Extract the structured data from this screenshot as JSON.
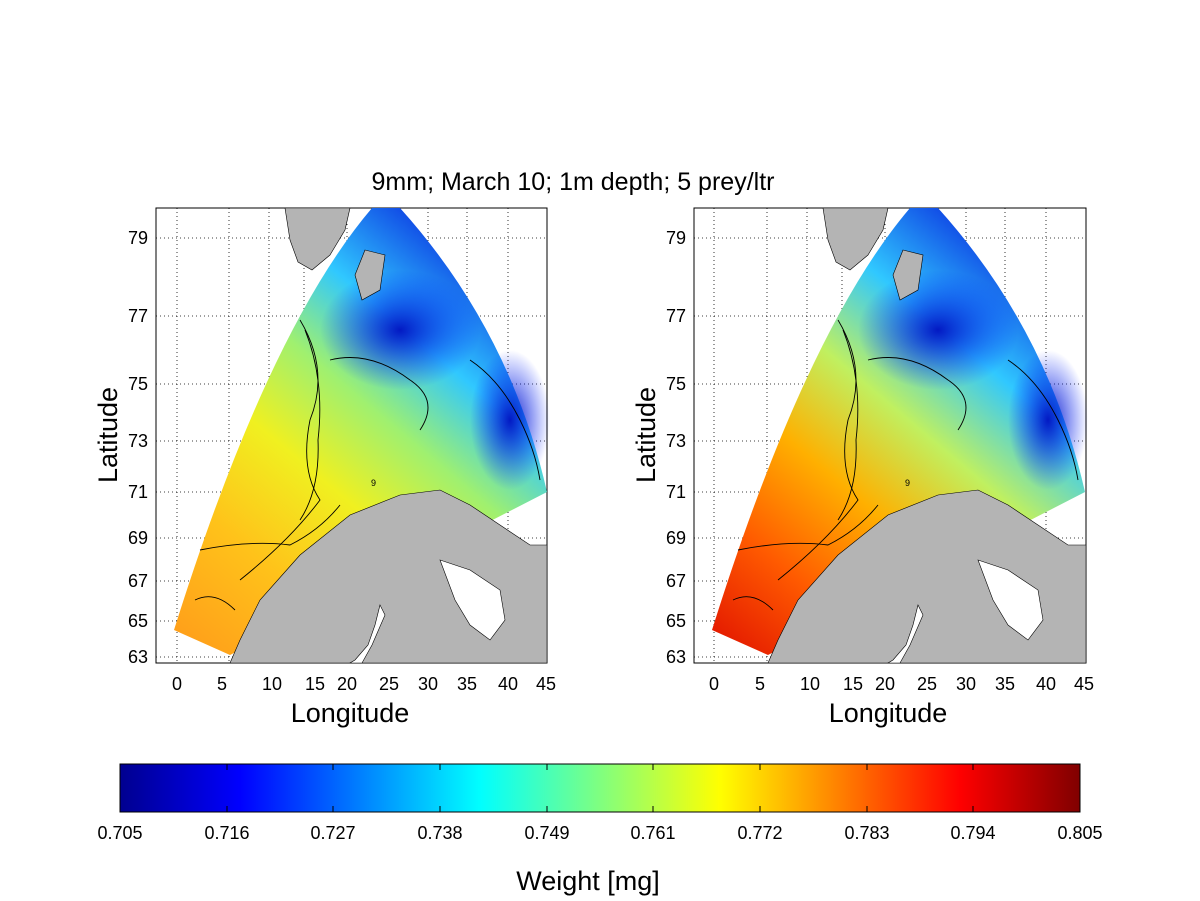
{
  "figure": {
    "title": "9mm; March 10; 1m depth; 5 prey/ltr",
    "panels": [
      {
        "id": "left",
        "xlabel": "Longitude",
        "ylabel": "Latitude",
        "xticks": [
          "0",
          "5",
          "10",
          "15",
          "20",
          "25",
          "30",
          "35",
          "40",
          "45"
        ],
        "yticks": [
          "63",
          "65",
          "67",
          "69",
          "71",
          "73",
          "75",
          "77",
          "79"
        ]
      },
      {
        "id": "right",
        "xlabel": "Longitude",
        "ylabel": "Latitude",
        "xticks": [
          "0",
          "5",
          "10",
          "15",
          "20",
          "25",
          "30",
          "35",
          "40",
          "45"
        ],
        "yticks": [
          "63",
          "65",
          "67",
          "69",
          "71",
          "73",
          "75",
          "77",
          "79"
        ]
      }
    ],
    "contour_labels": [
      "9",
      "9"
    ],
    "colorbar": {
      "label": "Weight [mg]",
      "ticks": [
        "0.705",
        "0.716",
        "0.727",
        "0.738",
        "0.749",
        "0.761",
        "0.772",
        "0.783",
        "0.794",
        "0.805"
      ],
      "min": 0.705,
      "max": 0.805,
      "colormap": "jet",
      "colors": [
        "#00008f",
        "#0000ff",
        "#0080ff",
        "#00ffff",
        "#80ff80",
        "#ffff00",
        "#ff8000",
        "#ff0000",
        "#800000"
      ]
    },
    "land_color": "#b4b4b4"
  }
}
